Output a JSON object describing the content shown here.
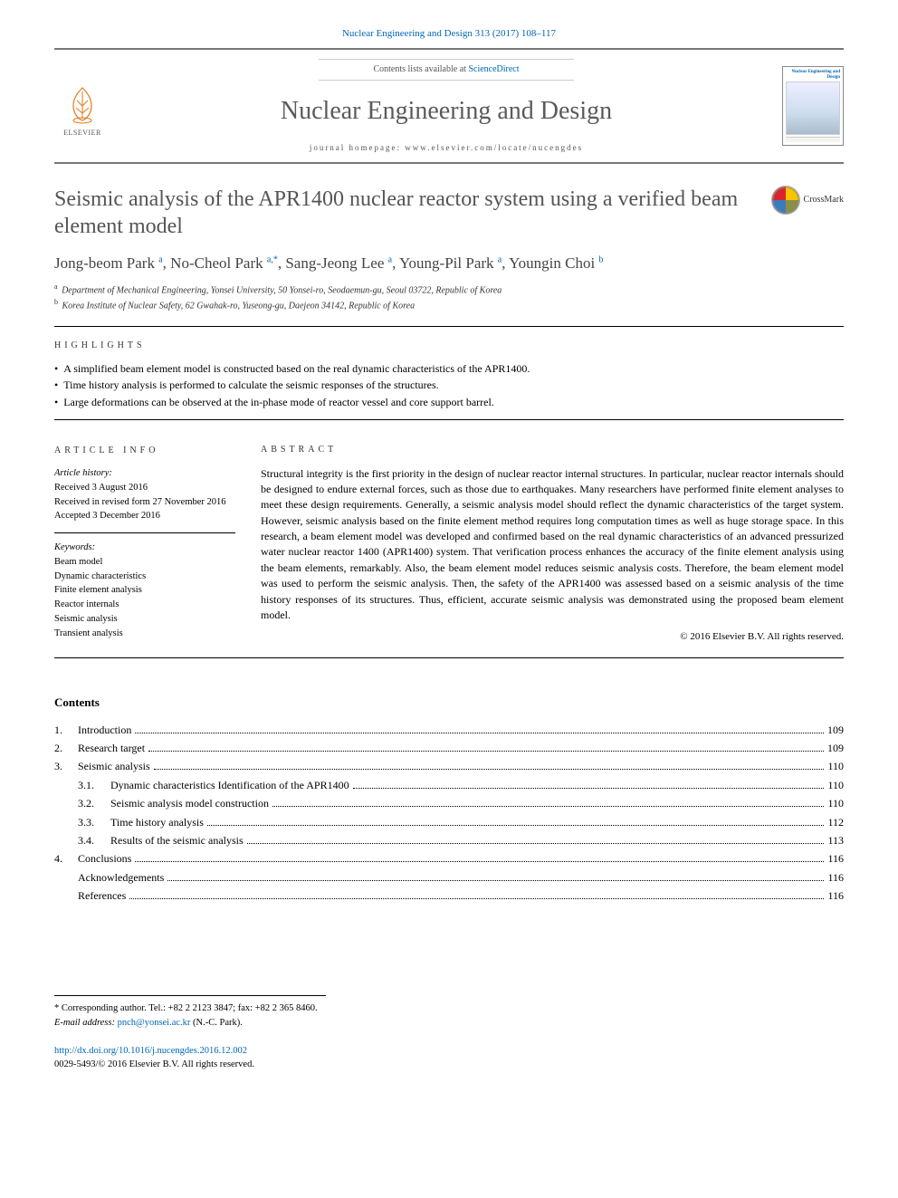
{
  "header": {
    "citation": "Nuclear Engineering and Design 313 (2017) 108–117",
    "contents_prefix": "Contents lists available at ",
    "contents_link": "ScienceDirect",
    "journal_name": "Nuclear Engineering and Design",
    "homepage_prefix": "journal homepage: ",
    "homepage_url": "www.elsevier.com/locate/nucengdes",
    "publisher": "ELSEVIER",
    "cover_text": "Nuclear Engineering and Design"
  },
  "title": "Seismic analysis of the APR1400 nuclear reactor system using a verified beam element model",
  "crossmark": "CrossMark",
  "authors_html": "Jong-beom Park <sup>a</sup>, No-Cheol Park <sup>a,*</sup>, Sang-Jeong Lee <sup>a</sup>, Young-Pil Park <sup>a</sup>, Youngin Choi <sup>b</sup>",
  "affiliations": [
    {
      "sup": "a",
      "text": "Department of Mechanical Engineering, Yonsei University, 50 Yonsei-ro, Seodaemun-gu, Seoul 03722, Republic of Korea"
    },
    {
      "sup": "b",
      "text": "Korea Institute of Nuclear Safety, 62 Gwahak-ro, Yuseong-gu, Daejeon 34142, Republic of Korea"
    }
  ],
  "highlights_label": "highlights",
  "highlights": [
    "A simplified beam element model is constructed based on the real dynamic characteristics of the APR1400.",
    "Time history analysis is performed to calculate the seismic responses of the structures.",
    "Large deformations can be observed at the in-phase mode of reactor vessel and core support barrel."
  ],
  "info_label": "article info",
  "abstract_label": "abstract",
  "history": {
    "heading": "Article history:",
    "received": "Received 3 August 2016",
    "revised": "Received in revised form 27 November 2016",
    "accepted": "Accepted 3 December 2016"
  },
  "keywords": {
    "heading": "Keywords:",
    "items": [
      "Beam model",
      "Dynamic characteristics",
      "Finite element analysis",
      "Reactor internals",
      "Seismic analysis",
      "Transient analysis"
    ]
  },
  "abstract_text": "Structural integrity is the first priority in the design of nuclear reactor internal structures. In particular, nuclear reactor internals should be designed to endure external forces, such as those due to earthquakes. Many researchers have performed finite element analyses to meet these design requirements. Generally, a seismic analysis model should reflect the dynamic characteristics of the target system. However, seismic analysis based on the finite element method requires long computation times as well as huge storage space. In this research, a beam element model was developed and confirmed based on the real dynamic characteristics of an advanced pressurized water nuclear reactor 1400 (APR1400) system. That verification process enhances the accuracy of the finite element analysis using the beam elements, remarkably. Also, the beam element model reduces seismic analysis costs. Therefore, the beam element model was used to perform the seismic analysis. Then, the safety of the APR1400 was assessed based on a seismic analysis of the time history responses of its structures. Thus, efficient, accurate seismic analysis was demonstrated using the proposed beam element model.",
  "copyright": "© 2016 Elsevier B.V. All rights reserved.",
  "contents_title": "Contents",
  "toc": [
    {
      "num": "1.",
      "title": "Introduction",
      "page": "109"
    },
    {
      "num": "2.",
      "title": "Research target",
      "page": "109"
    },
    {
      "num": "3.",
      "title": "Seismic analysis",
      "page": "110",
      "children": [
        {
          "num": "3.1.",
          "title": "Dynamic characteristics Identification of the APR1400",
          "page": "110"
        },
        {
          "num": "3.2.",
          "title": "Seismic analysis model construction",
          "page": "110"
        },
        {
          "num": "3.3.",
          "title": "Time history analysis",
          "page": "112"
        },
        {
          "num": "3.4.",
          "title": "Results of the seismic analysis",
          "page": "113"
        }
      ]
    },
    {
      "num": "4.",
      "title": "Conclusions",
      "page": "116"
    },
    {
      "num": "",
      "title": "Acknowledgements",
      "page": "116"
    },
    {
      "num": "",
      "title": "References",
      "page": "116"
    }
  ],
  "footer": {
    "corr": "* Corresponding author. Tel.: +82 2 2123 3847; fax: +82 2 365 8460.",
    "email_label": "E-mail address:",
    "email": "pnch@yonsei.ac.kr",
    "email_name": "(N.-C. Park)."
  },
  "doi": {
    "url": "http://dx.doi.org/10.1016/j.nucengdes.2016.12.002",
    "issn": "0029-5493/© 2016 Elsevier B.V. All rights reserved."
  },
  "colors": {
    "link": "#0066b3",
    "text_gray": "#555555",
    "rule": "#000000"
  }
}
